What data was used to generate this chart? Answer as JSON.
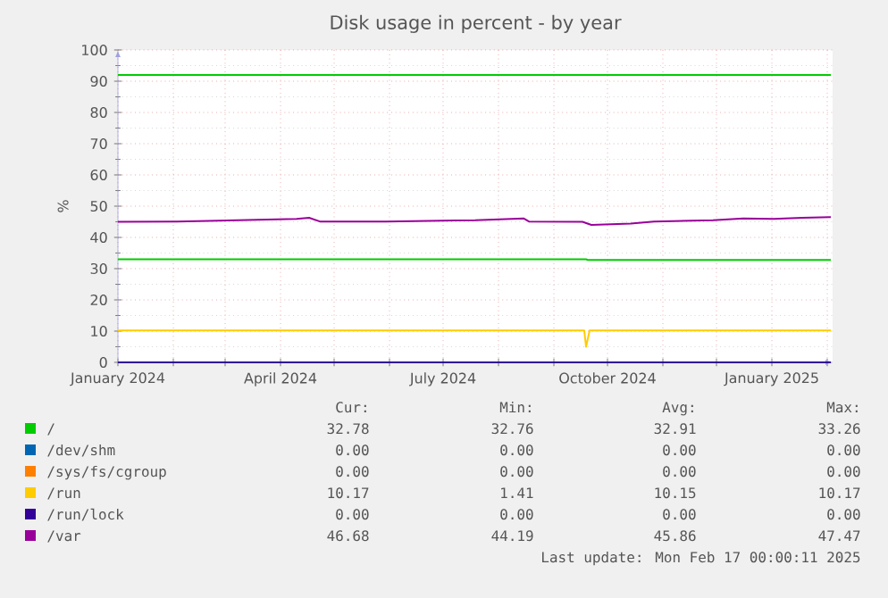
{
  "chart_data": {
    "type": "line",
    "title": "Disk usage in percent - by year",
    "ylabel": "%",
    "xlim": [
      "2024-01-01",
      "2025-02-04"
    ],
    "ylim": [
      0,
      100
    ],
    "yticks": [
      0,
      10,
      20,
      30,
      40,
      50,
      60,
      70,
      80,
      90,
      100
    ],
    "xticks": [
      {
        "value": "2024-01-01",
        "label": "January 2024"
      },
      {
        "value": "2024-02-01",
        "label": null
      },
      {
        "value": "2024-03-01",
        "label": null
      },
      {
        "value": "2024-04-01",
        "label": "April 2024"
      },
      {
        "value": "2024-05-01",
        "label": null
      },
      {
        "value": "2024-06-01",
        "label": null
      },
      {
        "value": "2024-07-01",
        "label": "July 2024"
      },
      {
        "value": "2024-08-01",
        "label": null
      },
      {
        "value": "2024-09-01",
        "label": null
      },
      {
        "value": "2024-10-01",
        "label": "October 2024"
      },
      {
        "value": "2024-11-01",
        "label": null
      },
      {
        "value": "2024-12-01",
        "label": null
      },
      {
        "value": "2025-01-01",
        "label": "January 2025"
      },
      {
        "value": "2025-02-01",
        "label": null
      }
    ],
    "grid": true,
    "legend": "bottom",
    "series": [
      {
        "name": "/",
        "color": "#00cc00",
        "x": [
          "2024-01-01",
          "2024-09-19",
          "2024-09-20",
          "2025-02-03"
        ],
        "values": [
          33.0,
          33.0,
          32.8,
          32.8
        ]
      },
      {
        "name": "/dev/shm",
        "color": "#0066b3"
      },
      {
        "name": "/sys/fs/cgroup",
        "color": "#ff8000"
      },
      {
        "name": "/run",
        "color": "#ffcc00",
        "x": [
          "2024-01-01",
          "2024-09-18",
          "2024-09-19",
          "2024-09-21",
          "2025-02-03"
        ],
        "values": [
          10.2,
          10.2,
          5,
          10.2,
          10.2
        ]
      },
      {
        "name": "/run/lock",
        "color": "#330099",
        "x": [
          "2024-01-01",
          "2025-02-03"
        ],
        "values": [
          0,
          0
        ]
      },
      {
        "name": "/var",
        "color": "#990099",
        "x": [
          "2024-01-01",
          "2024-02-03",
          "2024-03-08",
          "2024-04-10",
          "2024-04-17",
          "2024-04-23",
          "2024-05-30",
          "2024-07-19",
          "2024-08-15",
          "2024-08-18",
          "2024-09-17",
          "2024-09-22",
          "2024-10-14",
          "2024-10-27",
          "2024-11-29",
          "2024-12-16",
          "2025-01-02",
          "2025-01-18",
          "2025-02-03"
        ],
        "values": [
          45.0,
          45.1,
          45.5,
          45.9,
          46.3,
          45.1,
          45.1,
          45.5,
          46.1,
          45.1,
          45.0,
          44.0,
          44.4,
          45.1,
          45.5,
          46.1,
          45.9,
          46.3,
          46.5
        ]
      }
    ],
    "ref_lines": [
      {
        "axis": "y",
        "value": 92,
        "color": "#00cc00"
      }
    ],
    "annotations": [
      "Cur:",
      "Min:",
      "Avg:",
      "Max:",
      "32.78",
      "32.76",
      "32.91",
      "33.26",
      "0.00",
      "0.00",
      "0.00",
      "0.00",
      "0.00",
      "0.00",
      "0.00",
      "0.00",
      "10.17",
      "1.41",
      "10.15",
      "10.17",
      "0.00",
      "0.00",
      "0.00",
      "0.00",
      "46.68",
      "44.19",
      "45.86",
      "47.47",
      "Last update: Mon Feb 17 00:00:11 2025"
    ]
  }
}
